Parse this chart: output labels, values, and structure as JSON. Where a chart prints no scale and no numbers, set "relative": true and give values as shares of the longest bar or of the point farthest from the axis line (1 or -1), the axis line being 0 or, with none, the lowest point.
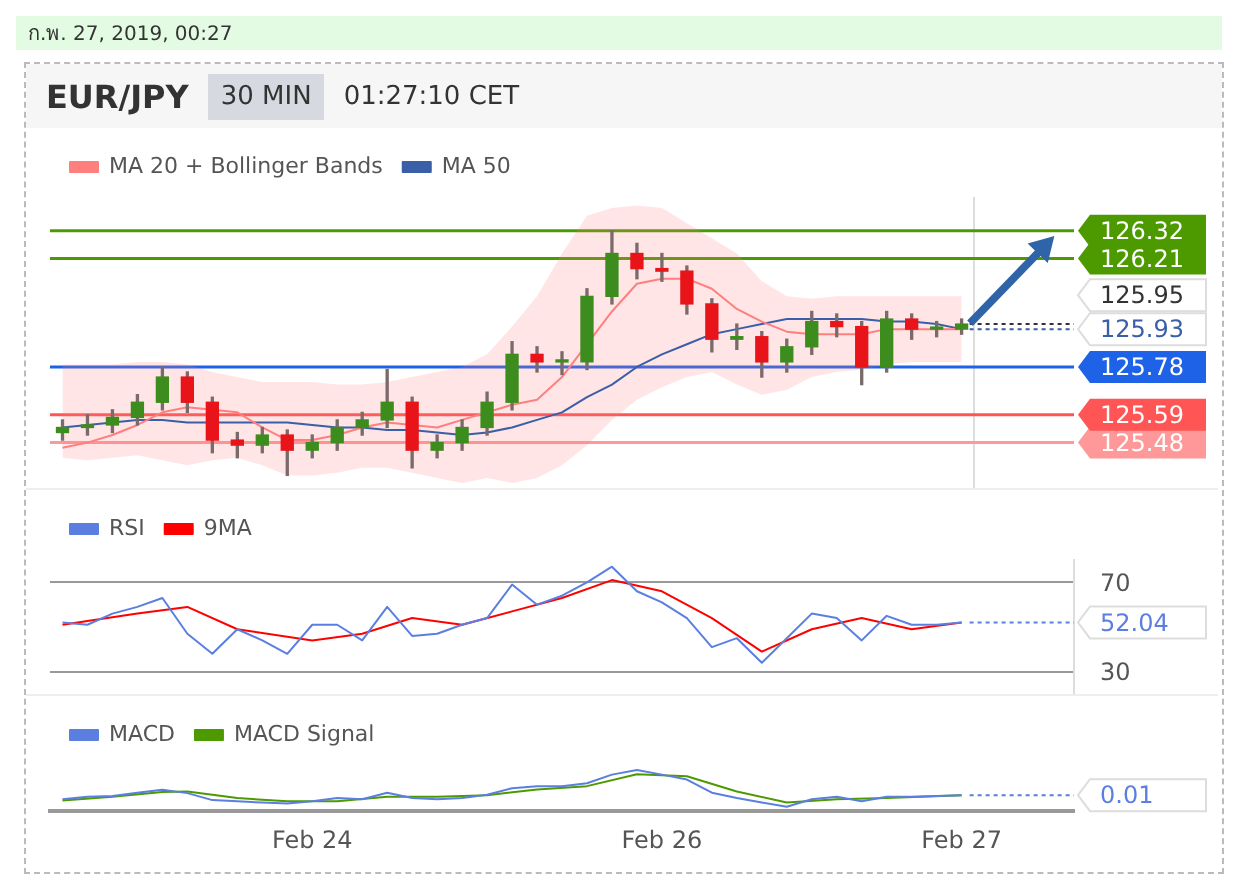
{
  "chart_data": [
    {
      "type": "candlestick",
      "title": "EUR/JPY",
      "subtitle": "30 MIN",
      "annotations": [
        "ก.พ. 27, 2019, 00:27",
        "01:27:10 CET"
      ],
      "categories": [
        null,
        null,
        null,
        null,
        null,
        null,
        null,
        null,
        null,
        null,
        null,
        null,
        null,
        null,
        null,
        null,
        null,
        null,
        null,
        null,
        null,
        null,
        null,
        null,
        null,
        null,
        null,
        null,
        null,
        null,
        null,
        null,
        null,
        null,
        null,
        null,
        null
      ],
      "ohlc": [
        [
          125.52,
          125.57,
          125.49,
          125.54
        ],
        [
          125.54,
          125.59,
          125.51,
          125.55
        ],
        [
          125.55,
          125.61,
          125.52,
          125.58
        ],
        [
          125.58,
          125.67,
          125.55,
          125.64
        ],
        [
          125.64,
          125.78,
          125.61,
          125.74
        ],
        [
          125.74,
          125.76,
          125.6,
          125.64
        ],
        [
          125.64,
          125.66,
          125.44,
          125.49
        ],
        [
          125.49,
          125.52,
          125.42,
          125.47
        ],
        [
          125.47,
          125.54,
          125.44,
          125.51
        ],
        [
          125.51,
          125.53,
          125.35,
          125.45
        ],
        [
          125.45,
          125.51,
          125.42,
          125.48
        ],
        [
          125.48,
          125.57,
          125.45,
          125.54
        ],
        [
          125.54,
          125.6,
          125.51,
          125.57
        ],
        [
          125.57,
          125.77,
          125.54,
          125.64
        ],
        [
          125.64,
          125.66,
          125.38,
          125.45
        ],
        [
          125.45,
          125.51,
          125.42,
          125.48
        ],
        [
          125.48,
          125.57,
          125.45,
          125.54
        ],
        [
          125.54,
          125.68,
          125.51,
          125.64
        ],
        [
          125.64,
          125.88,
          125.61,
          125.83
        ],
        [
          125.83,
          125.86,
          125.76,
          125.8
        ],
        [
          125.8,
          125.84,
          125.75,
          125.8
        ],
        [
          125.8,
          126.09,
          125.77,
          126.06
        ],
        [
          126.06,
          126.32,
          126.03,
          126.23
        ],
        [
          126.23,
          126.27,
          126.13,
          126.17
        ],
        [
          126.17,
          126.23,
          126.12,
          126.16
        ],
        [
          126.16,
          126.18,
          125.99,
          126.03
        ],
        [
          126.03,
          126.05,
          125.84,
          125.89
        ],
        [
          125.89,
          125.95,
          125.85,
          125.9
        ],
        [
          125.9,
          125.92,
          125.74,
          125.8
        ],
        [
          125.8,
          125.89,
          125.76,
          125.86
        ],
        [
          125.86,
          126.0,
          125.83,
          125.96
        ],
        [
          125.96,
          125.99,
          125.9,
          125.94
        ],
        [
          125.94,
          125.96,
          125.71,
          125.78
        ],
        [
          125.78,
          126.0,
          125.76,
          125.97
        ],
        [
          125.97,
          125.99,
          125.89,
          125.93
        ],
        [
          125.93,
          125.96,
          125.9,
          125.93
        ],
        [
          125.93,
          125.97,
          125.91,
          125.95
        ]
      ],
      "series": [
        {
          "name": "MA 20 + Bollinger Bands",
          "type": "line",
          "color": "#ff7f7f",
          "values": [
            125.46,
            125.48,
            125.51,
            125.55,
            125.6,
            125.62,
            125.61,
            125.6,
            125.54,
            125.49,
            125.49,
            125.51,
            125.54,
            125.56,
            125.55,
            125.54,
            125.57,
            125.6,
            125.63,
            125.65,
            125.74,
            null,
            126.0,
            126.11,
            126.13,
            126.13,
            126.09,
            126.01,
            125.96,
            125.92,
            125.91,
            125.91,
            125.91,
            125.93,
            125.93,
            125.93,
            125.93
          ],
          "upper": [
            125.79,
            125.79,
            125.79,
            125.8,
            125.8,
            125.79,
            125.76,
            125.74,
            125.72,
            125.72,
            125.72,
            125.71,
            125.71,
            125.72,
            125.74,
            125.76,
            125.78,
            125.83,
            125.94,
            126.06,
            126.23,
            126.38,
            126.41,
            126.42,
            126.41,
            126.35,
            126.29,
            126.23,
            126.12,
            126.06,
            126.05,
            126.06,
            126.06,
            126.06,
            126.06,
            126.06,
            126.06
          ],
          "lower": [
            125.42,
            125.41,
            125.42,
            125.43,
            125.41,
            125.39,
            125.41,
            125.42,
            125.39,
            125.35,
            125.35,
            125.36,
            125.38,
            125.38,
            125.36,
            125.34,
            125.32,
            125.34,
            125.32,
            125.34,
            125.39,
            125.47,
            125.57,
            125.65,
            125.7,
            125.74,
            125.76,
            125.71,
            125.67,
            125.69,
            125.74,
            125.76,
            125.77,
            125.79,
            125.8,
            125.8,
            125.8
          ]
        },
        {
          "name": "MA 50",
          "type": "line",
          "color": "#3a5ea8",
          "values": [
            125.54,
            125.55,
            125.56,
            125.57,
            125.57,
            125.56,
            125.56,
            125.56,
            125.56,
            125.56,
            125.55,
            125.54,
            125.54,
            125.53,
            125.53,
            125.52,
            125.51,
            125.52,
            125.54,
            125.57,
            125.6,
            125.66,
            125.71,
            125.78,
            125.83,
            125.87,
            125.91,
            125.93,
            125.95,
            125.97,
            125.97,
            125.97,
            125.97,
            125.96,
            125.96,
            125.95,
            125.93
          ]
        }
      ],
      "ylim": [
        125.3,
        126.45
      ],
      "yticks": [
        125.48,
        125.59,
        125.78,
        126.21,
        126.32
      ],
      "ref_lines": [
        {
          "axis": "y",
          "value": 126.32,
          "color": "#4c9a00"
        },
        {
          "axis": "y",
          "value": 126.21,
          "color": "#4c9a00"
        },
        {
          "axis": "y",
          "value": 125.95,
          "label": "125.95",
          "color": "#333333",
          "line_style": "dotted"
        },
        {
          "axis": "y",
          "value": 125.93,
          "label": "125.93",
          "color": "#3a5ea8",
          "line_style": "dotted"
        },
        {
          "axis": "y",
          "value": 125.78,
          "color": "#1e62e8"
        },
        {
          "axis": "y",
          "value": 125.59,
          "color": "#ff5555"
        },
        {
          "axis": "y",
          "value": 125.48,
          "color": "#ff9999"
        }
      ],
      "legend": "top left",
      "tick_labels": "y"
    },
    {
      "type": "line",
      "categories": [
        null,
        null,
        null,
        null,
        null,
        null,
        null,
        null,
        null,
        null,
        null,
        null,
        null,
        null,
        null,
        null,
        null,
        null,
        null,
        null,
        null,
        null,
        null,
        null,
        null,
        null,
        null,
        null,
        null,
        null,
        null,
        null,
        null,
        null,
        null,
        null,
        null,
        null,
        null,
        null,
        null
      ],
      "series": [
        {
          "name": "RSI",
          "color": "#5b7fe0",
          "values": [
            52,
            51,
            56,
            59,
            63,
            47,
            38,
            49,
            44,
            38,
            51,
            51,
            44,
            59,
            46,
            47,
            51,
            54,
            69,
            60,
            64,
            70,
            77,
            66,
            61,
            54,
            41,
            45,
            34,
            45,
            56,
            54,
            44,
            55,
            51,
            51,
            52,
            null,
            null,
            null,
            null
          ]
        },
        {
          "name": "9MA",
          "color": "#ff0000",
          "values": [
            51,
            null,
            null,
            56,
            null,
            59,
            null,
            49,
            null,
            null,
            44,
            null,
            47,
            null,
            54,
            null,
            51,
            null,
            57,
            null,
            63,
            null,
            71,
            null,
            66,
            null,
            54,
            null,
            39,
            null,
            49,
            null,
            54,
            null,
            49,
            null,
            52,
            null,
            null,
            null,
            null
          ]
        }
      ],
      "ylim": [
        20,
        80
      ],
      "yticks": [
        30,
        70
      ],
      "grid": "y",
      "ref_lines": [
        {
          "axis": "y",
          "value": 52.04,
          "label": "52.04",
          "color": "#5b7fe0",
          "line_style": "dotted"
        }
      ],
      "legend": "top left",
      "tick_labels": "y"
    },
    {
      "type": "line",
      "relative": true,
      "categories": [
        null,
        null,
        null,
        null,
        null,
        null,
        null,
        null,
        null,
        null,
        "Feb 24",
        null,
        null,
        null,
        null,
        null,
        null,
        null,
        null,
        null,
        null,
        null,
        null,
        null,
        "Feb 26",
        null,
        null,
        null,
        null,
        null,
        null,
        null,
        null,
        null,
        null,
        null,
        "Feb 27",
        null,
        null,
        null,
        null
      ],
      "series": [
        {
          "name": "MACD",
          "color": "#5b7fe0",
          "values": [
            0.29,
            0.35,
            0.37,
            0.45,
            0.52,
            0.44,
            0.27,
            0.24,
            0.21,
            0.19,
            0.24,
            0.32,
            0.29,
            0.45,
            0.32,
            0.29,
            0.32,
            0.4,
            0.56,
            0.61,
            0.61,
            0.68,
            0.89,
            1.0,
            0.89,
            0.77,
            0.45,
            0.32,
            0.21,
            0.11,
            0.29,
            0.35,
            0.24,
            0.35,
            0.35,
            0.37,
            0.39,
            null,
            null,
            null,
            null
          ]
        },
        {
          "name": "MACD Signal",
          "color": "#4c9a00",
          "values": [
            0.26,
            null,
            0.35,
            null,
            0.47,
            0.48,
            null,
            0.32,
            null,
            0.24,
            null,
            0.24,
            null,
            0.35,
            null,
            0.35,
            null,
            0.39,
            null,
            0.53,
            null,
            0.61,
            null,
            0.9,
            null,
            0.85,
            null,
            0.48,
            null,
            0.21,
            null,
            0.29,
            null,
            0.32,
            null,
            null,
            0.39,
            null,
            null,
            null,
            null
          ]
        }
      ],
      "annotations": [
        "0.01"
      ],
      "legend": "top left",
      "tick_labels": "x"
    }
  ]
}
